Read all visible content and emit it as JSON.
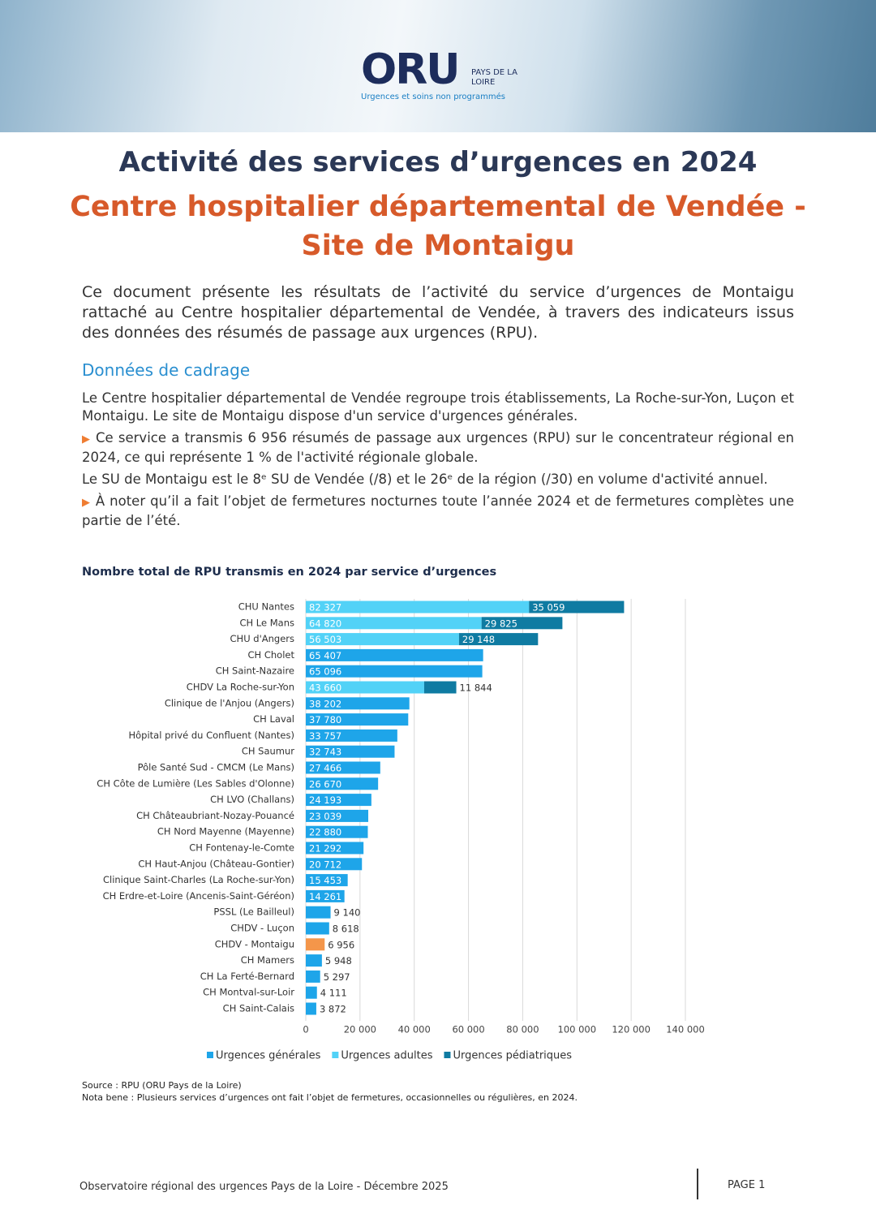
{
  "header": {
    "logo": "ORU",
    "logo_sub": "PAYS DE LA LOIRE",
    "tagline": "Urgences et soins non programmés"
  },
  "title": "Activité des services d’urgences en 2024",
  "subtitle": [
    "Centre hospitalier départemental de Vendée -",
    "Site de Montaigu"
  ],
  "intro": "Ce document présente les résultats de l’activité du service d’urgences de Montaigu rattaché au Centre hospitalier départemental de Vendée, à travers des indicateurs issus des données des résumés de passage aux urgences (RPU).",
  "section": "Données de cadrage",
  "paragraphs": [
    {
      "text": "Le Centre hospitalier départemental de Vendée regroupe trois établissements, La Roche-sur-Yon, Luçon et Montaigu. Le site de Montaigu dispose d'un service d'urgences générales.",
      "bullet": false
    },
    {
      "text": "Ce service a transmis 6 956 résumés de passage aux urgences (RPU) sur le concentrateur régional en 2024, ce qui représente 1 % de l'activité régionale globale.",
      "bullet": true
    },
    {
      "text": "Le SU de Montaigu est le 8ᵉ SU de Vendée (/8) et le 26ᵉ de la région (/30) en volume d'activité annuel.",
      "bullet": false
    },
    {
      "text": "À noter qu’il a fait l’objet de fermetures nocturnes toute l’année 2024 et de fermetures complètes une partie de l’été.",
      "bullet": true
    }
  ],
  "chart_data": {
    "type": "bar",
    "orientation": "horizontal",
    "stacked": true,
    "title": "Nombre total de RPU transmis en 2024 par service d’urgences",
    "categories": [
      "CHU Nantes",
      "CH Le Mans",
      "CHU d'Angers",
      "CH Cholet",
      "CH Saint-Nazaire",
      "CHDV La Roche-sur-Yon",
      "Clinique de l'Anjou (Angers)",
      "CH Laval",
      "Hôpital privé du Confluent (Nantes)",
      "CH Saumur",
      "Pôle Santé Sud - CMCM (Le Mans)",
      "CH Côte de Lumière (Les Sables d'Olonne)",
      "CH LVO (Challans)",
      "CH Châteaubriant-Nozay-Pouancé",
      "CH Nord Mayenne (Mayenne)",
      "CH Fontenay-le-Comte",
      "CH Haut-Anjou (Château-Gontier)",
      "Clinique Saint-Charles (La Roche-sur-Yon)",
      "CH Erdre-et-Loire (Ancenis-Saint-Géréon)",
      "PSSL (Le Bailleul)",
      "CHDV - Luçon",
      "CHDV - Montaigu",
      "CH Mamers",
      "CH La Ferté-Bernard",
      "CH Montval-sur-Loir",
      "CH Saint-Calais"
    ],
    "series": [
      {
        "name": "Urgences générales",
        "color": "#1ea5e9",
        "values": [
          null,
          null,
          null,
          65407,
          65096,
          null,
          38202,
          37780,
          33757,
          32743,
          27466,
          26670,
          24193,
          23039,
          22880,
          21292,
          20712,
          15453,
          14261,
          9140,
          8618,
          6956,
          5948,
          5297,
          4111,
          3872
        ],
        "value_labels": [
          null,
          null,
          null,
          "65 407",
          "65 096",
          null,
          "38 202",
          "37 780",
          "33 757",
          "32 743",
          "27 466",
          "26 670",
          "24 193",
          "23 039",
          "22 880",
          "21 292",
          "20 712",
          "15 453",
          "14 261",
          "9 140",
          "8 618",
          "6 956",
          "5 948",
          "5 297",
          "4 111",
          "3 872"
        ]
      },
      {
        "name": "Urgences adultes",
        "color": "#52d2f7",
        "values": [
          82327,
          64820,
          56503,
          null,
          null,
          43660,
          null,
          null,
          null,
          null,
          null,
          null,
          null,
          null,
          null,
          null,
          null,
          null,
          null,
          null,
          null,
          null,
          null,
          null,
          null,
          null
        ],
        "value_labels": [
          "82 327",
          "64 820",
          "56 503",
          null,
          null,
          "43 660",
          null,
          null,
          null,
          null,
          null,
          null,
          null,
          null,
          null,
          null,
          null,
          null,
          null,
          null,
          null,
          null,
          null,
          null,
          null,
          null
        ]
      },
      {
        "name": "Urgences pédiatriques",
        "color": "#0f7ba2",
        "values": [
          35059,
          29825,
          29148,
          null,
          null,
          11844,
          null,
          null,
          null,
          null,
          null,
          null,
          null,
          null,
          null,
          null,
          null,
          null,
          null,
          null,
          null,
          null,
          null,
          null,
          null,
          null
        ],
        "value_labels": [
          "35 059",
          "29 825",
          "29 148",
          null,
          null,
          "11 844",
          null,
          null,
          null,
          null,
          null,
          null,
          null,
          null,
          null,
          null,
          null,
          null,
          null,
          null,
          null,
          null,
          null,
          null,
          null,
          null
        ]
      }
    ],
    "highlight_index": 21,
    "highlight_color": "#f4964a",
    "xlim": [
      0,
      140000
    ],
    "xticks": [
      0,
      {
        "value": 20000,
        "label": "20 000"
      },
      {
        "value": 40000,
        "label": "40 000"
      },
      {
        "value": 60000,
        "label": "60 000"
      },
      {
        "value": 80000,
        "label": "80 000"
      },
      {
        "value": 100000,
        "label": "100 000"
      },
      {
        "value": 120000,
        "label": "120 000"
      },
      {
        "value": 140000,
        "label": "140 000"
      }
    ],
    "grid": true,
    "legend": "bottom"
  },
  "source": "Source : RPU (ORU Pays de la Loire)",
  "nota": "Nota bene : Plusieurs services d’urgences ont fait l’objet de fermetures, occasionnelles ou régulières, en 2024.",
  "footer": {
    "text": "Observatoire régional des urgences Pays de la Loire - Décembre 2025",
    "page": "PAGE 1"
  }
}
